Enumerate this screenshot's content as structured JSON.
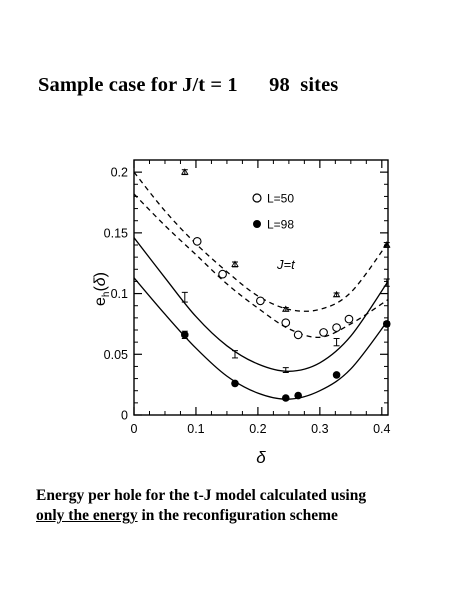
{
  "slide": {
    "title": "Sample case for J/t = 1      98  sites",
    "caption_line1": "Energy per hole for the t-J model calculated using",
    "caption_underlined": "only the energy",
    "caption_rest": " in the reconfiguration  scheme"
  },
  "chart_data": {
    "type": "scatter",
    "title": "",
    "xlabel": "δ",
    "ylabel": "e_h(δ)",
    "xlim": [
      0,
      0.41
    ],
    "ylim": [
      0,
      0.21
    ],
    "xticks": [
      0,
      0.1,
      0.2,
      0.3,
      0.4
    ],
    "xtick_labels": [
      "0",
      "0.1",
      "0.2",
      "0.3",
      "0.4"
    ],
    "yticks": [
      0,
      0.05,
      0.1,
      0.15,
      0.2
    ],
    "ytick_labels": [
      "0",
      "0.05",
      "0.1",
      "0.15",
      "0.2"
    ],
    "annotation": "J=t",
    "legend": [
      "L=50",
      "L=98"
    ],
    "legend_position": "top-right",
    "grid": false,
    "series": [
      {
        "name": "L=50",
        "marker": "open-circle",
        "x": [
          0.102,
          0.143,
          0.204,
          0.245,
          0.265,
          0.306,
          0.327,
          0.347
        ],
        "y": [
          0.143,
          0.116,
          0.094,
          0.076,
          0.066,
          0.068,
          0.072,
          0.079
        ],
        "yerr": [
          0.002,
          0.002,
          0.0015,
          0.0015,
          0.0015,
          0.0015,
          0.0015,
          0.0015
        ]
      },
      {
        "name": "L=98",
        "marker": "filled-circle",
        "x": [
          0.082,
          0.163,
          0.245,
          0.265,
          0.327,
          0.408
        ],
        "y": [
          0.066,
          0.026,
          0.014,
          0.016,
          0.033,
          0.075
        ],
        "yerr": [
          0.003,
          0.0015,
          0.0015,
          0.0015,
          0.0015,
          0.002
        ]
      },
      {
        "name": "",
        "marker": "triangle-errorbar",
        "x": [
          0.082,
          0.163,
          0.245,
          0.327,
          0.408
        ],
        "y": [
          0.2,
          0.124,
          0.087,
          0.099,
          0.14
        ],
        "yerr": [
          0.002,
          0.002,
          0.0015,
          0.0015,
          0.002
        ]
      },
      {
        "name": "",
        "marker": "errorbar-only",
        "x": [
          0.082,
          0.163,
          0.245,
          0.327,
          0.408
        ],
        "y": [
          0.097,
          0.05,
          0.037,
          0.06,
          0.109
        ],
        "yerr": [
          0.004,
          0.003,
          0.002,
          0.003,
          0.003
        ]
      }
    ],
    "fits": [
      {
        "style": "dashed",
        "x": [
          0,
          0.05,
          0.1,
          0.15,
          0.2,
          0.25,
          0.3,
          0.35,
          0.41
        ],
        "y": [
          0.2,
          0.168,
          0.141,
          0.118,
          0.098,
          0.087,
          0.087,
          0.101,
          0.142
        ]
      },
      {
        "style": "dashed",
        "x": [
          0,
          0.05,
          0.1,
          0.15,
          0.2,
          0.25,
          0.3,
          0.35,
          0.41
        ],
        "y": [
          0.182,
          0.156,
          0.132,
          0.108,
          0.088,
          0.071,
          0.064,
          0.075,
          0.095
        ]
      },
      {
        "style": "solid",
        "x": [
          0,
          0.05,
          0.1,
          0.15,
          0.2,
          0.25,
          0.3,
          0.35,
          0.41
        ],
        "y": [
          0.146,
          0.113,
          0.081,
          0.057,
          0.042,
          0.036,
          0.043,
          0.065,
          0.11
        ]
      },
      {
        "style": "solid",
        "x": [
          0,
          0.05,
          0.1,
          0.15,
          0.2,
          0.25,
          0.3,
          0.35,
          0.41
        ],
        "y": [
          0.113,
          0.083,
          0.055,
          0.032,
          0.018,
          0.013,
          0.02,
          0.038,
          0.078
        ]
      }
    ]
  }
}
